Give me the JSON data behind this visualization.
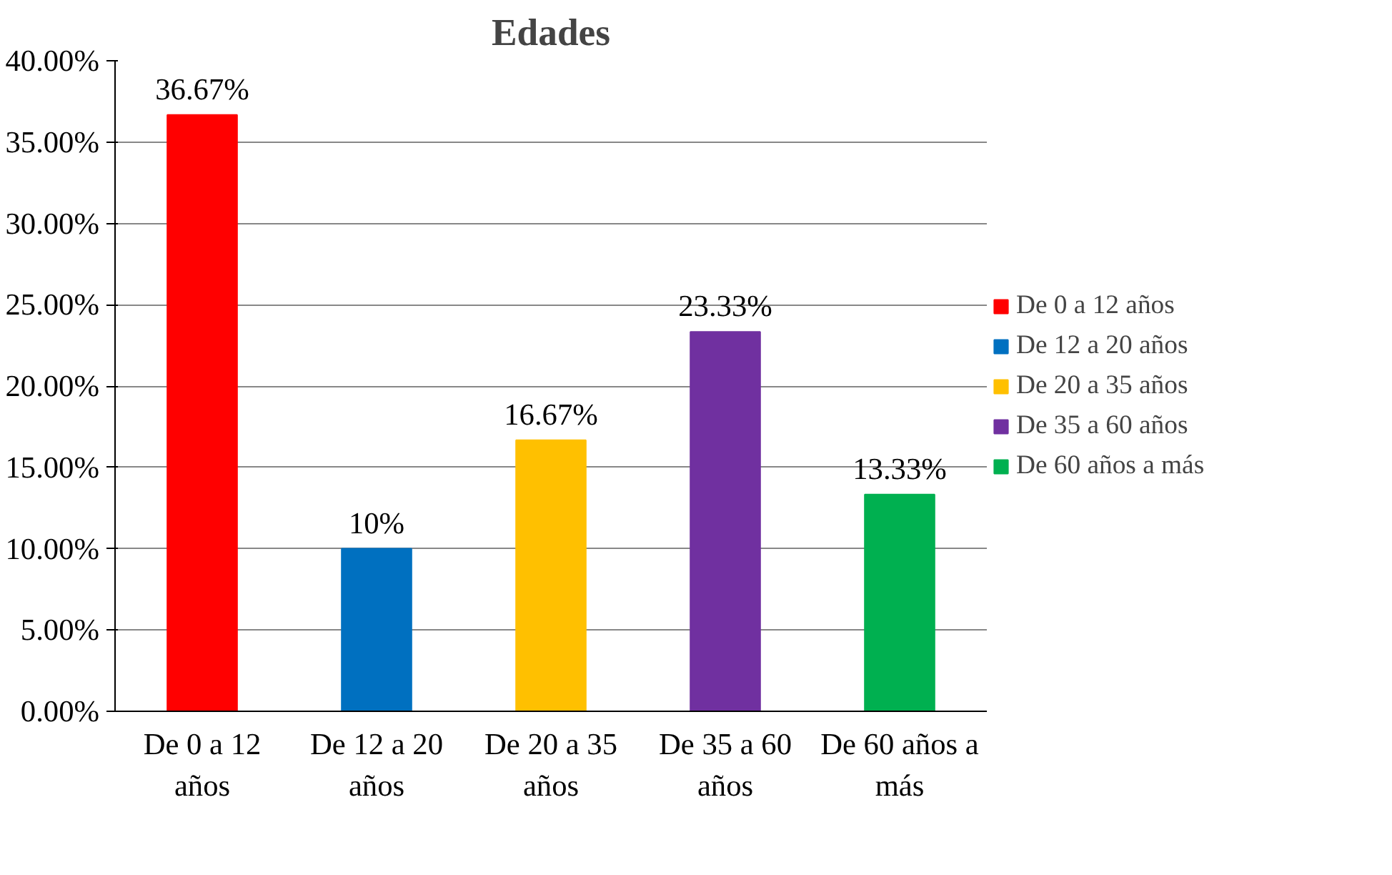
{
  "chart_data": {
    "type": "bar",
    "title": "Edades",
    "categories": [
      "De 0 a 12 años",
      "De 12 a 20 años",
      "De 20 a 35 años",
      "De 35 a 60 años",
      "De 60 años a más"
    ],
    "series": [
      {
        "name": "De 0 a 12 años",
        "color": "#ff0000",
        "values": [
          36.67,
          null,
          null,
          null,
          null
        ],
        "value_labels": [
          "36.67%",
          null,
          null,
          null,
          null
        ]
      },
      {
        "name": "De 12 a 20 años",
        "color": "#0070c0",
        "values": [
          null,
          10,
          null,
          null,
          null
        ],
        "value_labels": [
          null,
          "10%",
          null,
          null,
          null
        ]
      },
      {
        "name": "De 20 a 35 años",
        "color": "#ffc000",
        "values": [
          null,
          null,
          16.67,
          null,
          null
        ],
        "value_labels": [
          null,
          null,
          "16.67%",
          null,
          null
        ]
      },
      {
        "name": "De 35 a 60 años",
        "color": "#7030a0",
        "values": [
          null,
          null,
          null,
          23.33,
          null
        ],
        "value_labels": [
          null,
          null,
          null,
          "23.33%",
          null
        ]
      },
      {
        "name": "De 60 años a más",
        "color": "#00b050",
        "values": [
          null,
          null,
          null,
          null,
          13.33
        ],
        "value_labels": [
          null,
          null,
          null,
          null,
          "13.33%"
        ]
      }
    ],
    "ylim": [
      0,
      40
    ],
    "yticks": [
      {
        "value": 0,
        "label": "0.00%"
      },
      {
        "value": 5,
        "label": "5.00%"
      },
      {
        "value": 10,
        "label": "10.00%"
      },
      {
        "value": 15,
        "label": "15.00%"
      },
      {
        "value": 20,
        "label": "20.00%"
      },
      {
        "value": 25,
        "label": "25.00%"
      },
      {
        "value": 30,
        "label": "30.00%"
      },
      {
        "value": 35,
        "label": "35.00%"
      },
      {
        "value": 40,
        "label": "40.00%"
      }
    ],
    "grid": "y",
    "legend": "right"
  }
}
